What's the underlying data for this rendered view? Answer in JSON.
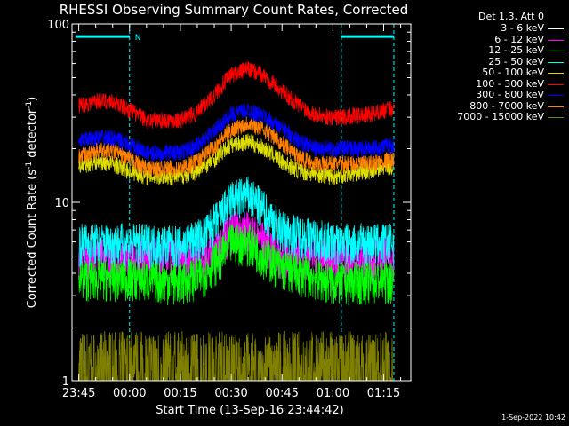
{
  "chart_data": {
    "type": "line",
    "title": "RHESSI Observing Summary Count Rates, Corrected",
    "xlabel": "Start Time (13-Sep-16 23:44:42)",
    "ylabel_prefix": "Corrected Count Rate (s",
    "ylabel_exp1": "-1",
    "ylabel_mid": " detector",
    "ylabel_exp2": "-1",
    "ylabel_suffix": ")",
    "yscale": "log",
    "ylim": [
      1,
      100
    ],
    "xlim_min": [
      -2,
      98
    ],
    "x_ticks": [
      {
        "min": 0,
        "label": "23:45"
      },
      {
        "min": 15,
        "label": "00:00"
      },
      {
        "min": 30,
        "label": "00:15"
      },
      {
        "min": 45,
        "label": "00:30"
      },
      {
        "min": 60,
        "label": "00:45"
      },
      {
        "min": 75,
        "label": "01:00"
      },
      {
        "min": 90,
        "label": "01:15"
      }
    ],
    "y_ticks": [
      {
        "v": 1,
        "label": "1"
      },
      {
        "v": 10,
        "label": "10"
      },
      {
        "v": 100,
        "label": "100"
      }
    ],
    "legend_title": "Det 1,3, Att 0",
    "series": [
      {
        "name": "3 - 6 keV",
        "color": "#ffffff",
        "points": []
      },
      {
        "name": "6 - 12 keV",
        "color": "#ff00ff",
        "points": [
          [
            0,
            5
          ],
          [
            15,
            5
          ],
          [
            30,
            5
          ],
          [
            37,
            5
          ],
          [
            42,
            6
          ],
          [
            45,
            7
          ],
          [
            50,
            7
          ],
          [
            55,
            6
          ],
          [
            60,
            5
          ],
          [
            75,
            5
          ],
          [
            93,
            5
          ]
        ]
      },
      {
        "name": "12 - 25 keV",
        "color": "#00ff00",
        "points": [
          [
            0,
            3.8
          ],
          [
            15,
            3.8
          ],
          [
            30,
            3.6
          ],
          [
            37,
            4
          ],
          [
            42,
            5
          ],
          [
            45,
            6
          ],
          [
            50,
            6
          ],
          [
            55,
            5
          ],
          [
            60,
            4.3
          ],
          [
            75,
            3.6
          ],
          [
            93,
            3.7
          ]
        ]
      },
      {
        "name": "25 - 50 keV",
        "color": "#00ffff",
        "points": [
          [
            0,
            6
          ],
          [
            15,
            6
          ],
          [
            30,
            5.8
          ],
          [
            37,
            6.5
          ],
          [
            42,
            8.5
          ],
          [
            45,
            10.5
          ],
          [
            50,
            11
          ],
          [
            55,
            9
          ],
          [
            60,
            7
          ],
          [
            75,
            6
          ],
          [
            93,
            6
          ]
        ]
      },
      {
        "name": "50 - 100 keV",
        "color": "#dddd00",
        "points": [
          [
            0,
            16
          ],
          [
            5,
            17
          ],
          [
            10,
            16.5
          ],
          [
            15,
            15
          ],
          [
            20,
            14
          ],
          [
            30,
            14
          ],
          [
            35,
            15
          ],
          [
            40,
            17.5
          ],
          [
            45,
            21
          ],
          [
            50,
            22
          ],
          [
            55,
            20
          ],
          [
            60,
            17
          ],
          [
            65,
            15
          ],
          [
            75,
            14
          ],
          [
            85,
            15
          ],
          [
            93,
            16
          ]
        ]
      },
      {
        "name": "100 - 300 keV",
        "color": "#ff0000",
        "points": [
          [
            0,
            35
          ],
          [
            5,
            37
          ],
          [
            10,
            37
          ],
          [
            15,
            33
          ],
          [
            20,
            29
          ],
          [
            30,
            29
          ],
          [
            35,
            32
          ],
          [
            40,
            40
          ],
          [
            45,
            52
          ],
          [
            50,
            56
          ],
          [
            55,
            51
          ],
          [
            60,
            42
          ],
          [
            65,
            35
          ],
          [
            70,
            31
          ],
          [
            75,
            30
          ],
          [
            85,
            31
          ],
          [
            93,
            34
          ]
        ]
      },
      {
        "name": "300 - 800 keV",
        "color": "#0000ff",
        "points": [
          [
            0,
            22
          ],
          [
            5,
            23
          ],
          [
            10,
            23
          ],
          [
            15,
            21
          ],
          [
            20,
            19
          ],
          [
            30,
            19
          ],
          [
            35,
            21
          ],
          [
            40,
            25
          ],
          [
            45,
            31
          ],
          [
            50,
            33
          ],
          [
            55,
            30
          ],
          [
            60,
            26
          ],
          [
            65,
            22
          ],
          [
            70,
            20
          ],
          [
            75,
            20
          ],
          [
            85,
            20
          ],
          [
            93,
            21
          ]
        ]
      },
      {
        "name": "800 - 7000 keV",
        "color": "#ff8000",
        "points": [
          [
            0,
            18
          ],
          [
            5,
            19.5
          ],
          [
            10,
            19.5
          ],
          [
            15,
            17.5
          ],
          [
            20,
            15.5
          ],
          [
            30,
            15.5
          ],
          [
            35,
            17
          ],
          [
            40,
            20.5
          ],
          [
            45,
            25.5
          ],
          [
            50,
            28
          ],
          [
            55,
            25.5
          ],
          [
            60,
            21.5
          ],
          [
            65,
            18
          ],
          [
            70,
            16.5
          ],
          [
            75,
            16.5
          ],
          [
            85,
            16.5
          ],
          [
            93,
            17.5
          ]
        ]
      },
      {
        "name": "7000 - 15000 keV",
        "color": "#808000",
        "points": [
          [
            0,
            1.3
          ],
          [
            15,
            1.3
          ],
          [
            30,
            1.3
          ],
          [
            45,
            1.4
          ],
          [
            60,
            1.3
          ],
          [
            75,
            1.3
          ],
          [
            93,
            1.3
          ]
        ]
      }
    ],
    "saa_bars": [
      [
        -1,
        15
      ],
      [
        77.5,
        93
      ]
    ],
    "saa_label": "N",
    "boundaries_min": [
      15,
      77.5,
      93
    ]
  },
  "timestamp": "1-Sep-2022 10:42"
}
